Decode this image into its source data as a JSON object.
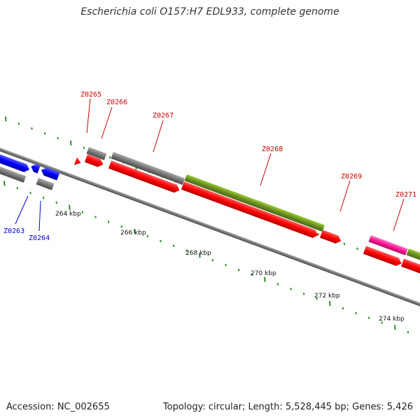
{
  "title": "Escherichia coli O157:H7 EDL933, complete genome",
  "footer": {
    "accession": "Accession: NC_002655",
    "topology": "Topology: circular; Length: 5,528,445 bp; Genes: 5,426"
  },
  "colors": {
    "forward_label": "#cc0000",
    "reverse_label": "#0000cc",
    "red_gene": "#ff0000",
    "blue_gene": "#0000ff",
    "gray_gene": "#777777",
    "green_gene": "#6b8e23",
    "magenta_gene": "#ff1493",
    "tick": "#2e8b2e"
  },
  "gene_labels": [
    {
      "id": "Z0265",
      "strand": "forward"
    },
    {
      "id": "Z0266",
      "strand": "forward"
    },
    {
      "id": "Z0267",
      "strand": "forward"
    },
    {
      "id": "Z0268",
      "strand": "forward"
    },
    {
      "id": "Z0269",
      "strand": "forward"
    },
    {
      "id": "Z0271",
      "strand": "forward"
    },
    {
      "id": "Z0263",
      "strand": "reverse"
    },
    {
      "id": "Z0264",
      "strand": "reverse"
    }
  ],
  "kbp_labels": [
    "264 kbp",
    "266 kbp",
    "268 kbp",
    "270 kbp",
    "272 kbp",
    "274 kbp"
  ]
}
